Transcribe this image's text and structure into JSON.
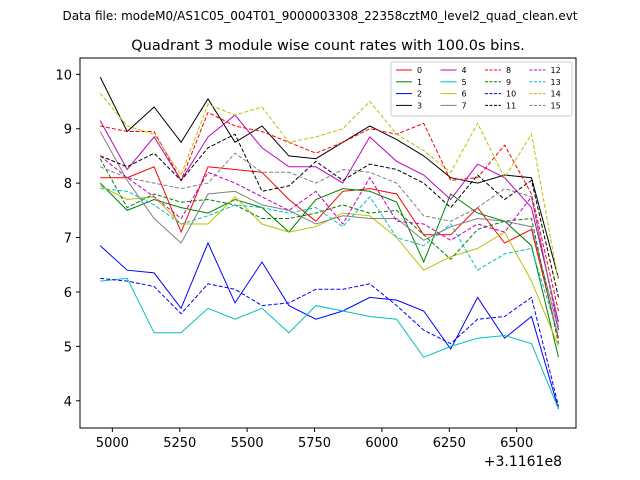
{
  "chart_data": {
    "type": "line",
    "suptitle": "Data file: modeM0/AS1C05_004T01_9000003308_22358cztM0_level2_quad_clean.evt",
    "title": "Quadrant 3 module wise count rates with 100.0s bins.",
    "xlabel": "",
    "ylabel": "",
    "x_offset_label": "+3.1161e8",
    "xlim": [
      4880,
      6720
    ],
    "ylim": [
      3.5,
      10.3
    ],
    "xticks": [
      5000,
      5250,
      5500,
      5750,
      6000,
      6250,
      6500
    ],
    "yticks": [
      4,
      5,
      6,
      7,
      8,
      9,
      10
    ],
    "x": [
      4955,
      5055,
      5155,
      5255,
      5355,
      5455,
      5555,
      5655,
      5755,
      5855,
      5955,
      6055,
      6155,
      6255,
      6355,
      6455,
      6555,
      6655
    ],
    "legend_location": "top-right",
    "series": [
      {
        "name": "0",
        "color": "#ff0000",
        "dash": "solid",
        "values": [
          8.1,
          8.1,
          8.3,
          7.1,
          8.3,
          8.25,
          8.2,
          7.7,
          7.3,
          7.85,
          7.9,
          7.8,
          7.05,
          7.05,
          7.55,
          6.9,
          7.15,
          5.15
        ]
      },
      {
        "name": "1",
        "color": "#008000",
        "dash": "solid",
        "values": [
          8.0,
          7.5,
          7.7,
          7.55,
          7.45,
          7.7,
          7.55,
          7.1,
          7.7,
          7.9,
          7.85,
          7.65,
          6.55,
          7.8,
          7.45,
          7.3,
          6.85,
          4.8
        ]
      },
      {
        "name": "2",
        "color": "#0000ff",
        "dash": "solid",
        "values": [
          6.85,
          6.4,
          6.35,
          5.7,
          6.9,
          5.8,
          6.55,
          5.75,
          5.5,
          5.65,
          5.9,
          5.85,
          5.65,
          4.95,
          5.9,
          5.15,
          5.55,
          3.85
        ]
      },
      {
        "name": "3",
        "color": "#000000",
        "dash": "solid",
        "values": [
          9.95,
          8.95,
          9.4,
          8.75,
          9.55,
          8.75,
          9.05,
          8.5,
          8.45,
          8.75,
          9.05,
          8.8,
          8.5,
          8.1,
          8.0,
          8.15,
          8.1,
          6.25
        ]
      },
      {
        "name": "4",
        "color": "#bf00bf",
        "dash": "solid",
        "values": [
          9.15,
          8.25,
          8.85,
          8.05,
          8.85,
          9.25,
          8.65,
          8.3,
          8.3,
          8.0,
          8.85,
          8.4,
          8.15,
          7.7,
          8.35,
          8.1,
          7.55,
          5.45
        ]
      },
      {
        "name": "5",
        "color": "#00bfbf",
        "dash": "solid",
        "values": [
          6.2,
          6.25,
          5.25,
          5.25,
          5.7,
          5.5,
          5.7,
          5.25,
          5.75,
          5.65,
          5.55,
          5.5,
          4.8,
          5.0,
          5.15,
          5.2,
          5.05,
          3.85
        ]
      },
      {
        "name": "6",
        "color": "#bfbf00",
        "dash": "solid",
        "values": [
          7.95,
          7.7,
          7.75,
          7.25,
          7.25,
          7.75,
          7.25,
          7.1,
          7.2,
          7.45,
          7.4,
          7.0,
          6.4,
          6.65,
          6.8,
          7.1,
          6.2,
          5.0
        ]
      },
      {
        "name": "7",
        "color": "#808080",
        "dash": "solid",
        "values": [
          8.95,
          8.05,
          7.35,
          6.9,
          7.8,
          7.85,
          7.6,
          7.5,
          7.25,
          7.4,
          7.35,
          7.35,
          6.95,
          7.2,
          7.35,
          7.3,
          7.2,
          5.3
        ]
      },
      {
        "name": "8",
        "color": "#ff0000",
        "dash": "dashed",
        "values": [
          9.05,
          8.95,
          8.95,
          8.05,
          9.3,
          9.05,
          8.95,
          8.75,
          8.55,
          8.75,
          9.0,
          8.9,
          9.1,
          8.05,
          8.1,
          8.7,
          7.8,
          5.65
        ]
      },
      {
        "name": "9",
        "color": "#008000",
        "dash": "dashed",
        "values": [
          8.45,
          7.55,
          7.8,
          7.65,
          7.7,
          7.6,
          7.35,
          7.35,
          7.45,
          7.6,
          7.45,
          7.5,
          7.05,
          6.6,
          7.15,
          7.3,
          7.35,
          5.05
        ]
      },
      {
        "name": "10",
        "color": "#0000ff",
        "dash": "dashed",
        "values": [
          6.25,
          6.2,
          6.1,
          5.6,
          6.15,
          6.05,
          5.75,
          5.8,
          6.05,
          6.05,
          6.15,
          5.75,
          5.3,
          5.05,
          5.5,
          5.55,
          5.9,
          3.9
        ]
      },
      {
        "name": "11",
        "color": "#000000",
        "dash": "dashed",
        "values": [
          8.5,
          8.3,
          8.55,
          8.05,
          8.65,
          8.9,
          7.85,
          7.95,
          8.4,
          8.05,
          8.35,
          8.25,
          8.0,
          7.55,
          8.15,
          7.7,
          8.05,
          5.9
        ]
      },
      {
        "name": "12",
        "color": "#bf00bf",
        "dash": "dashed",
        "values": [
          8.5,
          8.1,
          7.75,
          7.35,
          8.2,
          8.0,
          7.75,
          7.5,
          7.85,
          7.25,
          8.1,
          7.3,
          7.25,
          6.95,
          7.25,
          7.1,
          7.75,
          5.3
        ]
      },
      {
        "name": "13",
        "color": "#00bfbf",
        "dash": "dashed",
        "values": [
          7.9,
          7.85,
          7.6,
          7.25,
          7.4,
          7.6,
          7.55,
          7.45,
          7.55,
          7.2,
          7.75,
          7.0,
          6.85,
          7.25,
          6.4,
          6.7,
          6.8,
          5.2
        ]
      },
      {
        "name": "14",
        "color": "#bfbf00",
        "dash": "dashed",
        "values": [
          9.65,
          9.05,
          8.9,
          8.15,
          9.45,
          9.25,
          9.4,
          8.75,
          8.85,
          9.0,
          9.5,
          8.9,
          8.6,
          8.2,
          9.1,
          8.1,
          8.9,
          6.2
        ]
      },
      {
        "name": "15",
        "color": "#808080",
        "dash": "dashed",
        "values": [
          8.3,
          8.1,
          8.0,
          7.9,
          8.0,
          8.55,
          8.2,
          8.2,
          8.0,
          8.25,
          8.2,
          8.0,
          7.4,
          7.3,
          7.55,
          7.9,
          7.75,
          5.35
        ]
      }
    ]
  }
}
